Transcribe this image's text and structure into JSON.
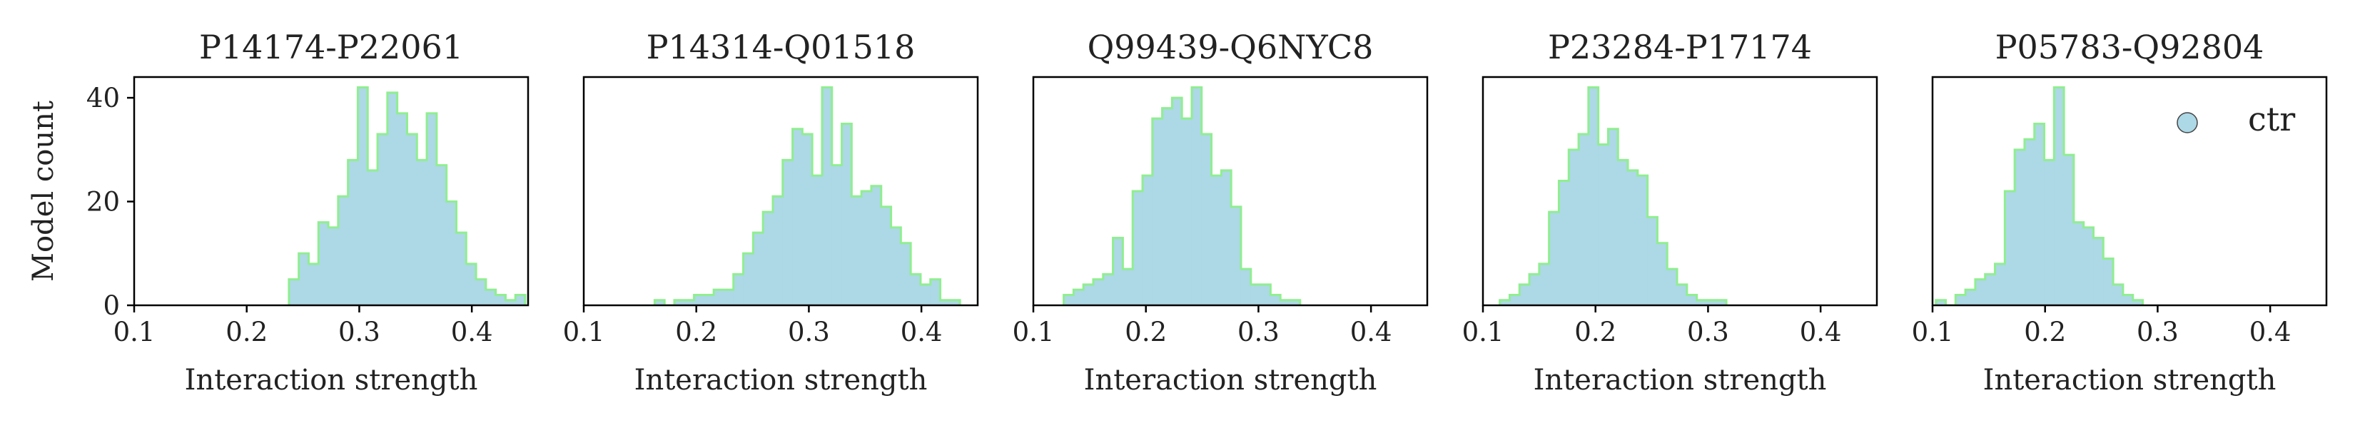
{
  "figure": {
    "ylabel": "Model count",
    "legend_label": "ctr",
    "colors": {
      "fill": "#add8e6",
      "edge": "#90ee90",
      "axes": "#000000",
      "text": "#222222"
    }
  },
  "chart_data": [
    {
      "type": "bar",
      "subtype": "histogram",
      "title": "P14174-P22061",
      "xlabel": "Interaction strength",
      "ylabel": "Model count",
      "xlim": [
        0.1,
        0.45
      ],
      "ylim": [
        0,
        44
      ],
      "xticks": [
        "0.1",
        "0.2",
        "0.3",
        "0.4"
      ],
      "yticks": [
        "0",
        "20",
        "40"
      ],
      "bin_start": 0.2375,
      "bin_width": 0.00875,
      "counts": [
        5,
        10,
        8,
        16,
        15,
        21,
        28,
        42,
        26,
        33,
        41,
        37,
        33,
        28,
        37,
        27,
        20,
        14,
        8,
        5,
        3,
        2,
        1,
        2
      ],
      "series": [
        {
          "name": "ctr"
        }
      ],
      "legend_position": "top-right",
      "grid": false
    },
    {
      "type": "bar",
      "subtype": "histogram",
      "title": "P14314-Q01518",
      "xlabel": "Interaction strength",
      "ylim": [
        0,
        44
      ],
      "xlim": [
        0.1,
        0.45
      ],
      "xticks": [
        "0.1",
        "0.2",
        "0.3",
        "0.4"
      ],
      "bin_start": 0.163,
      "bin_width": 0.00875,
      "counts": [
        1,
        0,
        1,
        1,
        2,
        2,
        3,
        3,
        6,
        10,
        14,
        18,
        21,
        28,
        34,
        33,
        25,
        42,
        27,
        35,
        21,
        22,
        23,
        19,
        15,
        12,
        6,
        4,
        5,
        1,
        1
      ],
      "grid": false
    },
    {
      "type": "bar",
      "subtype": "histogram",
      "title": "Q99439-Q6NYC8",
      "xlabel": "Interaction strength",
      "ylim": [
        0,
        44
      ],
      "xlim": [
        0.1,
        0.45
      ],
      "xticks": [
        "0.1",
        "0.2",
        "0.3",
        "0.4"
      ],
      "bin_start": 0.127,
      "bin_width": 0.00875,
      "counts": [
        2,
        3,
        4,
        5,
        6,
        13,
        7,
        22,
        25,
        36,
        38,
        40,
        36,
        42,
        33,
        25,
        26,
        19,
        7,
        4,
        4,
        2,
        1,
        1
      ],
      "grid": false
    },
    {
      "type": "bar",
      "subtype": "histogram",
      "title": "P23284-P17174",
      "xlabel": "Interaction strength",
      "ylim": [
        0,
        44
      ],
      "xlim": [
        0.1,
        0.45
      ],
      "xticks": [
        "0.1",
        "0.2",
        "0.3",
        "0.4"
      ],
      "bin_start": 0.115,
      "bin_width": 0.00875,
      "counts": [
        1,
        2,
        4,
        6,
        8,
        18,
        24,
        30,
        33,
        42,
        31,
        34,
        28,
        26,
        25,
        17,
        12,
        7,
        4,
        2,
        1,
        1,
        1
      ],
      "grid": false
    },
    {
      "type": "bar",
      "subtype": "histogram",
      "title": "P05783-Q92804",
      "xlabel": "Interaction strength",
      "ylim": [
        0,
        44
      ],
      "xlim": [
        0.1,
        0.45
      ],
      "xticks": [
        "0.1",
        "0.2",
        "0.3",
        "0.4"
      ],
      "bin_start": 0.103,
      "bin_width": 0.00875,
      "counts": [
        1,
        0,
        2,
        3,
        5,
        6,
        8,
        22,
        30,
        32,
        35,
        28,
        42,
        29,
        16,
        15,
        13,
        9,
        4,
        2,
        1
      ],
      "grid": false
    }
  ]
}
